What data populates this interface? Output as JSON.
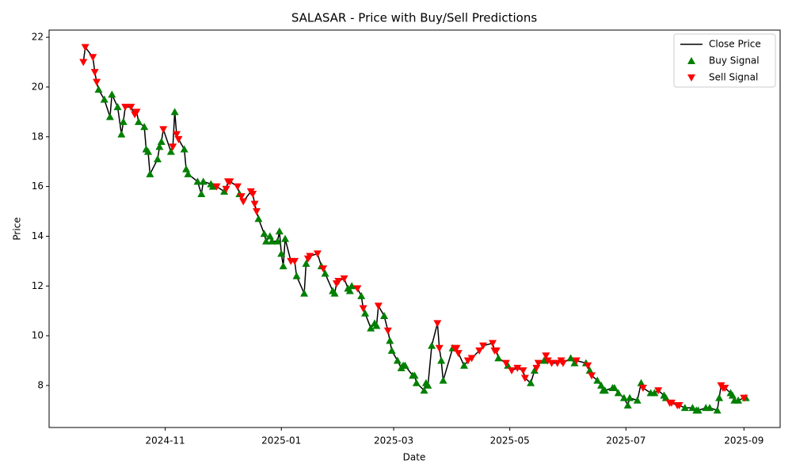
{
  "chart_data": {
    "type": "line",
    "title": "SALASAR - Price with Buy/Sell Predictions",
    "x_label": "Date",
    "y_label": "Price",
    "xlim": [
      "2024-09-01",
      "2025-09-20"
    ],
    "xticks": [
      {
        "value": "2024-11-01",
        "label": "2024-11"
      },
      {
        "value": "2025-01-01",
        "label": "2025-01"
      },
      {
        "value": "2025-03-01",
        "label": "2025-03"
      },
      {
        "value": "2025-05-01",
        "label": "2025-05"
      },
      {
        "value": "2025-07-01",
        "label": "2025-07"
      },
      {
        "value": "2025-09-01",
        "label": "2025-09"
      }
    ],
    "ylim": [
      6.31,
      22.29
    ],
    "yticks": [
      8,
      10,
      12,
      14,
      16,
      18,
      20,
      22
    ],
    "grid": false,
    "legend": "upper right",
    "series": [
      {
        "name": "Close Price",
        "type": "line",
        "color": "#000000",
        "x": [
          "2024-09-19",
          "2024-09-20",
          "2024-09-24",
          "2024-09-25",
          "2024-09-26",
          "2024-09-27",
          "2024-09-30",
          "2024-10-03",
          "2024-10-04",
          "2024-10-07",
          "2024-10-09",
          "2024-10-10",
          "2024-10-11",
          "2024-10-14",
          "2024-10-16",
          "2024-10-17",
          "2024-10-18",
          "2024-10-21",
          "2024-10-22",
          "2024-10-23",
          "2024-10-24",
          "2024-10-28",
          "2024-10-29",
          "2024-10-30",
          "2024-10-31",
          "2024-11-04",
          "2024-11-05",
          "2024-11-06",
          "2024-11-07",
          "2024-11-08",
          "2024-11-11",
          "2024-11-12",
          "2024-11-13",
          "2024-11-18",
          "2024-11-20",
          "2024-11-21",
          "2024-11-25",
          "2024-11-26",
          "2024-11-28",
          "2024-12-02",
          "2024-12-03",
          "2024-12-04",
          "2024-12-05",
          "2024-12-09",
          "2024-12-10",
          "2024-12-11",
          "2024-12-12",
          "2024-12-16",
          "2024-12-17",
          "2024-12-18",
          "2024-12-19",
          "2024-12-20",
          "2024-12-23",
          "2024-12-24",
          "2024-12-26",
          "2024-12-27",
          "2024-12-30",
          "2024-12-31",
          "2025-01-01",
          "2025-01-02",
          "2025-01-03",
          "2025-01-06",
          "2025-01-08",
          "2025-01-09",
          "2025-01-13",
          "2025-01-14",
          "2025-01-15",
          "2025-01-16",
          "2025-01-20",
          "2025-01-22",
          "2025-01-23",
          "2025-01-24",
          "2025-01-28",
          "2025-01-29",
          "2025-01-30",
          "2025-01-31",
          "2025-02-03",
          "2025-02-05",
          "2025-02-06",
          "2025-02-07",
          "2025-02-10",
          "2025-02-12",
          "2025-02-13",
          "2025-02-14",
          "2025-02-17",
          "2025-02-19",
          "2025-02-20",
          "2025-02-21",
          "2025-02-24",
          "2025-02-26",
          "2025-02-27",
          "2025-02-28",
          "2025-03-03",
          "2025-03-05",
          "2025-03-06",
          "2025-03-07",
          "2025-03-11",
          "2025-03-12",
          "2025-03-13",
          "2025-03-17",
          "2025-03-18",
          "2025-03-19",
          "2025-03-21",
          "2025-03-24",
          "2025-03-25",
          "2025-03-26",
          "2025-03-27",
          "2025-04-01",
          "2025-04-02",
          "2025-04-03",
          "2025-04-04",
          "2025-04-07",
          "2025-04-09",
          "2025-04-11",
          "2025-04-15",
          "2025-04-17",
          "2025-04-22",
          "2025-04-23",
          "2025-04-24",
          "2025-04-25",
          "2025-04-29",
          "2025-04-30",
          "2025-05-02",
          "2025-05-05",
          "2025-05-08",
          "2025-05-09",
          "2025-05-12",
          "2025-05-14",
          "2025-05-15",
          "2025-05-16",
          "2025-05-19",
          "2025-05-20",
          "2025-05-21",
          "2025-05-23",
          "2025-05-26",
          "2025-05-28",
          "2025-05-29",
          "2025-06-02",
          "2025-06-04",
          "2025-06-05",
          "2025-06-10",
          "2025-06-11",
          "2025-06-12",
          "2025-06-13",
          "2025-06-16",
          "2025-06-18",
          "2025-06-19",
          "2025-06-20",
          "2025-06-24",
          "2025-06-25",
          "2025-06-27",
          "2025-06-30",
          "2025-07-02",
          "2025-07-03",
          "2025-07-07",
          "2025-07-09",
          "2025-07-10",
          "2025-07-14",
          "2025-07-16",
          "2025-07-18",
          "2025-07-21",
          "2025-07-22",
          "2025-07-24",
          "2025-07-25",
          "2025-07-28",
          "2025-07-29",
          "2025-08-01",
          "2025-08-05",
          "2025-08-07",
          "2025-08-08",
          "2025-08-12",
          "2025-08-14",
          "2025-08-18",
          "2025-08-19",
          "2025-08-20",
          "2025-08-21",
          "2025-08-22",
          "2025-08-25",
          "2025-08-26",
          "2025-08-27",
          "2025-08-29",
          "2025-09-01",
          "2025-09-02"
        ],
        "values": [
          21.0,
          21.6,
          21.2,
          20.6,
          20.2,
          19.9,
          19.5,
          18.8,
          19.7,
          19.2,
          18.1,
          18.6,
          19.2,
          19.2,
          18.9,
          19.0,
          18.6,
          18.4,
          17.5,
          17.4,
          16.5,
          17.1,
          17.6,
          17.8,
          18.3,
          17.4,
          17.6,
          19.0,
          18.1,
          17.9,
          17.5,
          16.7,
          16.5,
          16.2,
          15.7,
          16.2,
          16.1,
          16.0,
          16.0,
          15.8,
          15.9,
          16.2,
          16.2,
          16.0,
          15.7,
          15.6,
          15.4,
          15.8,
          15.7,
          15.3,
          15.0,
          14.7,
          14.1,
          13.8,
          14.0,
          13.8,
          13.8,
          14.2,
          13.3,
          12.8,
          13.9,
          13.0,
          13.0,
          12.4,
          11.7,
          12.9,
          13.1,
          13.2,
          13.3,
          12.8,
          12.7,
          12.5,
          11.8,
          11.7,
          12.1,
          12.2,
          12.3,
          11.9,
          11.8,
          12.0,
          11.9,
          11.6,
          11.1,
          10.9,
          10.3,
          10.5,
          10.4,
          11.2,
          10.8,
          10.2,
          9.8,
          9.4,
          9.0,
          8.7,
          8.8,
          8.8,
          8.4,
          8.4,
          8.1,
          7.8,
          8.1,
          8.0,
          9.6,
          10.5,
          9.5,
          9.0,
          8.2,
          9.5,
          9.5,
          9.5,
          9.3,
          8.8,
          9.0,
          9.1,
          9.4,
          9.6,
          9.7,
          9.4,
          9.4,
          9.1,
          8.9,
          8.8,
          8.6,
          8.7,
          8.6,
          8.3,
          8.1,
          8.6,
          8.7,
          8.9,
          9.0,
          9.2,
          9.0,
          8.9,
          8.9,
          9.0,
          8.9,
          9.1,
          8.9,
          9.0,
          8.9,
          8.8,
          8.6,
          8.4,
          8.2,
          8.0,
          7.8,
          7.8,
          7.9,
          7.9,
          7.7,
          7.5,
          7.2,
          7.5,
          7.4,
          8.1,
          7.9,
          7.7,
          7.7,
          7.8,
          7.6,
          7.5,
          7.3,
          7.3,
          7.2,
          7.2,
          7.1,
          7.1,
          7.0,
          7.0,
          7.1,
          7.1,
          7.0,
          7.5,
          8.0,
          7.9,
          7.9,
          7.7,
          7.6,
          7.4,
          7.4,
          7.5,
          7.5
        ]
      },
      {
        "name": "Buy Signal",
        "type": "scatter",
        "marker": "triangle-up",
        "color": "#008000",
        "x": [
          "2024-09-27",
          "2024-09-30",
          "2024-10-03",
          "2024-10-04",
          "2024-10-07",
          "2024-10-09",
          "2024-10-10",
          "2024-10-18",
          "2024-10-21",
          "2024-10-22",
          "2024-10-23",
          "2024-10-24",
          "2024-10-28",
          "2024-10-29",
          "2024-10-30",
          "2024-11-04",
          "2024-11-06",
          "2024-11-11",
          "2024-11-12",
          "2024-11-13",
          "2024-11-18",
          "2024-11-20",
          "2024-11-21",
          "2024-11-25",
          "2024-11-26",
          "2024-12-02",
          "2024-12-10",
          "2024-12-20",
          "2024-12-23",
          "2024-12-24",
          "2024-12-26",
          "2024-12-27",
          "2024-12-30",
          "2024-12-31",
          "2025-01-01",
          "2025-01-02",
          "2025-01-03",
          "2025-01-09",
          "2025-01-13",
          "2025-01-14",
          "2025-01-22",
          "2025-01-24",
          "2025-01-28",
          "2025-01-29",
          "2025-02-05",
          "2025-02-06",
          "2025-02-07",
          "2025-02-12",
          "2025-02-14",
          "2025-02-17",
          "2025-02-19",
          "2025-02-20",
          "2025-02-24",
          "2025-02-27",
          "2025-02-28",
          "2025-03-03",
          "2025-03-05",
          "2025-03-06",
          "2025-03-07",
          "2025-03-11",
          "2025-03-12",
          "2025-03-13",
          "2025-03-17",
          "2025-03-18",
          "2025-03-19",
          "2025-03-21",
          "2025-03-26",
          "2025-03-27",
          "2025-04-01",
          "2025-04-07",
          "2025-04-25",
          "2025-04-30",
          "2025-05-12",
          "2025-05-14",
          "2025-05-19",
          "2025-06-02",
          "2025-06-04",
          "2025-06-10",
          "2025-06-12",
          "2025-06-16",
          "2025-06-18",
          "2025-06-19",
          "2025-06-20",
          "2025-06-24",
          "2025-06-25",
          "2025-06-27",
          "2025-06-30",
          "2025-07-02",
          "2025-07-03",
          "2025-07-07",
          "2025-07-09",
          "2025-07-14",
          "2025-07-16",
          "2025-07-21",
          "2025-07-22",
          "2025-08-01",
          "2025-08-05",
          "2025-08-07",
          "2025-08-08",
          "2025-08-12",
          "2025-08-14",
          "2025-08-18",
          "2025-08-19",
          "2025-08-25",
          "2025-08-26",
          "2025-08-27",
          "2025-08-29",
          "2025-09-02"
        ],
        "values": [
          19.9,
          19.5,
          18.8,
          19.7,
          19.2,
          18.1,
          18.6,
          18.6,
          18.4,
          17.5,
          17.4,
          16.5,
          17.1,
          17.6,
          17.8,
          17.4,
          19.0,
          17.5,
          16.7,
          16.5,
          16.2,
          15.7,
          16.2,
          16.1,
          16.0,
          15.8,
          15.7,
          14.7,
          14.1,
          13.8,
          14.0,
          13.8,
          13.8,
          14.2,
          13.3,
          12.8,
          13.9,
          12.4,
          11.7,
          12.9,
          12.8,
          12.5,
          11.8,
          11.7,
          11.9,
          11.8,
          12.0,
          11.6,
          10.9,
          10.3,
          10.5,
          10.4,
          10.8,
          9.8,
          9.4,
          9.0,
          8.7,
          8.8,
          8.8,
          8.4,
          8.4,
          8.1,
          7.8,
          8.1,
          8.0,
          9.6,
          9.0,
          8.2,
          9.5,
          8.8,
          9.1,
          8.8,
          8.1,
          8.6,
          9.0,
          9.1,
          8.9,
          8.9,
          8.6,
          8.2,
          8.0,
          7.8,
          7.8,
          7.9,
          7.9,
          7.7,
          7.5,
          7.2,
          7.5,
          7.4,
          8.1,
          7.7,
          7.7,
          7.6,
          7.5,
          7.1,
          7.1,
          7.0,
          7.0,
          7.1,
          7.1,
          7.0,
          7.5,
          7.7,
          7.6,
          7.4,
          7.4,
          7.5
        ]
      },
      {
        "name": "Sell Signal",
        "type": "scatter",
        "marker": "triangle-down",
        "color": "#ff0000",
        "x": [
          "2024-09-19",
          "2024-09-20",
          "2024-09-24",
          "2024-09-25",
          "2024-09-26",
          "2024-10-11",
          "2024-10-14",
          "2024-10-16",
          "2024-10-17",
          "2024-10-31",
          "2024-11-05",
          "2024-11-07",
          "2024-11-08",
          "2024-11-28",
          "2024-12-03",
          "2024-12-04",
          "2024-12-05",
          "2024-12-09",
          "2024-12-11",
          "2024-12-12",
          "2024-12-16",
          "2024-12-17",
          "2024-12-18",
          "2024-12-19",
          "2025-01-06",
          "2025-01-08",
          "2025-01-15",
          "2025-01-16",
          "2025-01-20",
          "2025-01-23",
          "2025-01-30",
          "2025-01-31",
          "2025-02-03",
          "2025-02-10",
          "2025-02-13",
          "2025-02-21",
          "2025-02-26",
          "2025-03-24",
          "2025-03-25",
          "2025-04-02",
          "2025-04-03",
          "2025-04-04",
          "2025-04-09",
          "2025-04-11",
          "2025-04-15",
          "2025-04-17",
          "2025-04-22",
          "2025-04-23",
          "2025-04-24",
          "2025-04-29",
          "2025-05-02",
          "2025-05-05",
          "2025-05-08",
          "2025-05-09",
          "2025-05-15",
          "2025-05-16",
          "2025-05-20",
          "2025-05-21",
          "2025-05-23",
          "2025-05-26",
          "2025-05-28",
          "2025-05-29",
          "2025-06-05",
          "2025-06-11",
          "2025-06-13",
          "2025-07-10",
          "2025-07-18",
          "2025-07-24",
          "2025-07-25",
          "2025-07-28",
          "2025-07-29",
          "2025-08-20",
          "2025-08-21",
          "2025-08-22",
          "2025-09-01"
        ],
        "values": [
          21.0,
          21.6,
          21.2,
          20.6,
          20.2,
          19.2,
          19.2,
          18.9,
          19.0,
          18.3,
          17.6,
          18.1,
          17.9,
          16.0,
          15.9,
          16.2,
          16.2,
          16.0,
          15.6,
          15.4,
          15.8,
          15.7,
          15.3,
          15.0,
          13.0,
          13.0,
          13.1,
          13.2,
          13.3,
          12.7,
          12.1,
          12.2,
          12.3,
          11.9,
          11.1,
          11.2,
          10.2,
          10.5,
          9.5,
          9.5,
          9.5,
          9.3,
          9.0,
          9.1,
          9.4,
          9.6,
          9.7,
          9.4,
          9.4,
          8.9,
          8.6,
          8.7,
          8.6,
          8.3,
          8.7,
          8.9,
          9.2,
          9.0,
          8.9,
          8.9,
          9.0,
          8.9,
          9.0,
          8.8,
          8.4,
          7.9,
          7.8,
          7.3,
          7.3,
          7.2,
          7.2,
          8.0,
          7.9,
          7.9,
          7.5
        ]
      }
    ]
  }
}
